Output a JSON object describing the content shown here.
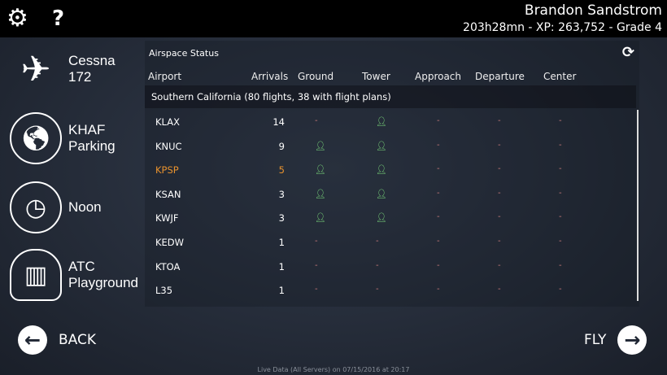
{
  "topbar": {
    "settings_icon": "gear-icon",
    "help_icon": "question-icon",
    "user_name": "Brandon Sandstrom",
    "user_stats": "203h28mn - XP: 263,752 - Grade 4"
  },
  "menu": [
    {
      "icon": "airplane-icon",
      "label": "Cessna 172"
    },
    {
      "icon": "globe-icon",
      "label": "KHAF Parking"
    },
    {
      "icon": "clock-icon",
      "label": "Noon"
    },
    {
      "icon": "atc-cloud-icon",
      "label": "ATC Playground"
    }
  ],
  "panel": {
    "title": "Airspace Status",
    "refresh_icon": "refresh-icon",
    "columns": [
      "Airport",
      "Arrivals",
      "Ground",
      "Tower",
      "Approach",
      "Departure",
      "Center"
    ],
    "group": "Southern California (80 flights, 38 with flight plans)",
    "rows": [
      {
        "airport": "KLAX",
        "arrivals": "14",
        "ground": false,
        "tower": true
      },
      {
        "airport": "KNUC",
        "arrivals": "9",
        "ground": true,
        "tower": true
      },
      {
        "airport": "KPSP",
        "arrivals": "5",
        "ground": true,
        "tower": true,
        "highlight": "#e8922e"
      },
      {
        "airport": "KSAN",
        "arrivals": "3",
        "ground": true,
        "tower": true
      },
      {
        "airport": "KWJF",
        "arrivals": "3",
        "ground": true,
        "tower": true
      },
      {
        "airport": "KEDW",
        "arrivals": "1",
        "ground": false,
        "tower": false
      },
      {
        "airport": "KTOA",
        "arrivals": "1",
        "ground": false,
        "tower": false
      },
      {
        "airport": "L35",
        "arrivals": "1",
        "ground": false,
        "tower": false
      }
    ],
    "empty_mark": "-",
    "active_color": "#7ee07e"
  },
  "nav": {
    "back": "BACK",
    "fly": "FLY"
  },
  "footer": "Live Data (All Servers) on 07/15/2016 at 20:17"
}
